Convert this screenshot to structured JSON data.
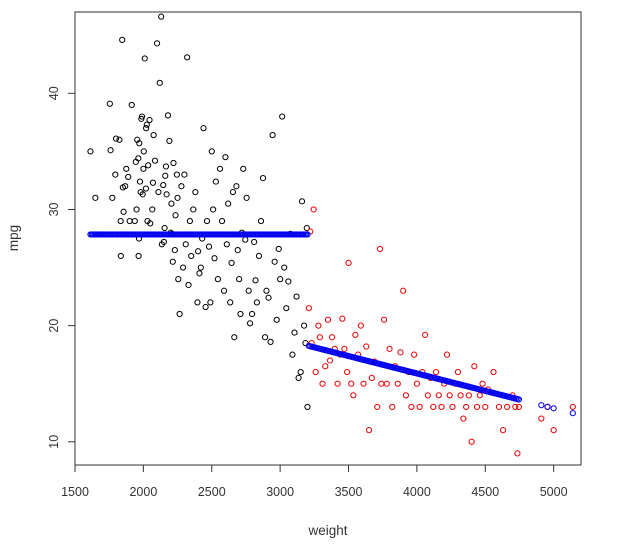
{
  "chart_data": {
    "type": "scatter",
    "xlabel": "weight",
    "ylabel": "mpg",
    "xlim": [
      1500,
      5200
    ],
    "ylim": [
      8,
      47
    ],
    "xticks": [
      1500,
      2000,
      2500,
      3000,
      3500,
      4000,
      4500,
      5000
    ],
    "yticks": [
      10,
      20,
      30,
      40
    ],
    "grid": false,
    "legend": "none",
    "colors": {
      "light": "#000000",
      "heavy": "#ee0000",
      "fit": "#0000ee"
    },
    "series": [
      {
        "key": "light",
        "points": [
          [
            1613,
            35
          ],
          [
            1649,
            31
          ],
          [
            1755,
            39.1
          ],
          [
            1760,
            35.1
          ],
          [
            1773,
            31
          ],
          [
            1795,
            33
          ],
          [
            1800,
            36.1
          ],
          [
            1825,
            36
          ],
          [
            1834,
            29
          ],
          [
            1835,
            26
          ],
          [
            1845,
            44.6
          ],
          [
            1850,
            31.9
          ],
          [
            1855,
            29.8
          ],
          [
            1867,
            32
          ],
          [
            1875,
            33.5
          ],
          [
            1889,
            32.8
          ],
          [
            1900,
            29
          ],
          [
            1915,
            39
          ],
          [
            1937,
            29
          ],
          [
            1945,
            34.1
          ],
          [
            1950,
            30
          ],
          [
            1955,
            36
          ],
          [
            1963,
            34.4
          ],
          [
            1965,
            26
          ],
          [
            1968,
            27.5
          ],
          [
            1970,
            35.7
          ],
          [
            1975,
            32.4
          ],
          [
            1980,
            31.5
          ],
          [
            1985,
            37.8
          ],
          [
            1990,
            38
          ],
          [
            1995,
            31.3
          ],
          [
            2000,
            33.5
          ],
          [
            2003,
            35
          ],
          [
            2010,
            43
          ],
          [
            2019,
            31.8
          ],
          [
            2020,
            37
          ],
          [
            2025,
            37.3
          ],
          [
            2030,
            29
          ],
          [
            2035,
            33.8
          ],
          [
            2045,
            37.7
          ],
          [
            2050,
            28.8
          ],
          [
            2065,
            30
          ],
          [
            2070,
            32.3
          ],
          [
            2075,
            36.4
          ],
          [
            2085,
            34.2
          ],
          [
            2100,
            44.3
          ],
          [
            2110,
            31.5
          ],
          [
            2120,
            40.9
          ],
          [
            2130,
            46.6
          ],
          [
            2135,
            27
          ],
          [
            2145,
            32.1
          ],
          [
            2150,
            27.2
          ],
          [
            2155,
            28.4
          ],
          [
            2160,
            32.9
          ],
          [
            2165,
            33.7
          ],
          [
            2170,
            31.3
          ],
          [
            2180,
            38.1
          ],
          [
            2190,
            35.9
          ],
          [
            2200,
            28
          ],
          [
            2205,
            30.5
          ],
          [
            2210,
            27.9
          ],
          [
            2215,
            25.5
          ],
          [
            2220,
            34
          ],
          [
            2230,
            26.5
          ],
          [
            2235,
            29.5
          ],
          [
            2245,
            33
          ],
          [
            2250,
            31
          ],
          [
            2255,
            24
          ],
          [
            2265,
            21
          ],
          [
            2278,
            32
          ],
          [
            2290,
            25
          ],
          [
            2300,
            33
          ],
          [
            2310,
            27
          ],
          [
            2320,
            43.1
          ],
          [
            2330,
            23.5
          ],
          [
            2340,
            29
          ],
          [
            2350,
            26
          ],
          [
            2365,
            30
          ],
          [
            2380,
            31.5
          ],
          [
            2395,
            22
          ],
          [
            2400,
            26.4
          ],
          [
            2410,
            24.5
          ],
          [
            2420,
            25
          ],
          [
            2430,
            27.5
          ],
          [
            2440,
            37
          ],
          [
            2455,
            21.6
          ],
          [
            2465,
            29
          ],
          [
            2480,
            26.8
          ],
          [
            2490,
            22
          ],
          [
            2500,
            35
          ],
          [
            2510,
            30
          ],
          [
            2520,
            25.8
          ],
          [
            2530,
            32.4
          ],
          [
            2545,
            24
          ],
          [
            2560,
            33.5
          ],
          [
            2575,
            29
          ],
          [
            2590,
            23
          ],
          [
            2600,
            34.5
          ],
          [
            2610,
            27
          ],
          [
            2620,
            30.5
          ],
          [
            2635,
            22
          ],
          [
            2645,
            25.4
          ],
          [
            2655,
            31.5
          ],
          [
            2665,
            19
          ],
          [
            2680,
            32
          ],
          [
            2690,
            26.5
          ],
          [
            2700,
            24
          ],
          [
            2710,
            21
          ],
          [
            2720,
            28
          ],
          [
            2730,
            33.5
          ],
          [
            2745,
            27.4
          ],
          [
            2755,
            31
          ],
          [
            2770,
            23
          ],
          [
            2780,
            20.2
          ],
          [
            2795,
            21
          ],
          [
            2810,
            27.2
          ],
          [
            2820,
            23.9
          ],
          [
            2830,
            22
          ],
          [
            2845,
            26
          ],
          [
            2860,
            29
          ],
          [
            2875,
            32.7
          ],
          [
            2890,
            19
          ],
          [
            2900,
            23
          ],
          [
            2915,
            22.4
          ],
          [
            2930,
            18.6
          ],
          [
            2945,
            36.4
          ],
          [
            2960,
            25.5
          ],
          [
            2975,
            20.5
          ],
          [
            2990,
            26.6
          ],
          [
            3000,
            24
          ],
          [
            3015,
            38
          ],
          [
            3030,
            25
          ],
          [
            3045,
            21.5
          ],
          [
            3060,
            23.8
          ],
          [
            3075,
            27.9
          ],
          [
            3090,
            17.5
          ],
          [
            3105,
            19.4
          ],
          [
            3120,
            22.5
          ],
          [
            3135,
            15.5
          ],
          [
            3150,
            16
          ],
          [
            3160,
            30.7
          ],
          [
            3175,
            20
          ],
          [
            3185,
            18.5
          ],
          [
            3195,
            28.4
          ],
          [
            3200,
            13
          ]
        ]
      },
      {
        "key": "heavy",
        "points": [
          [
            3210,
            21.5
          ],
          [
            3220,
            28.1
          ],
          [
            3230,
            18.5
          ],
          [
            3245,
            30
          ],
          [
            3260,
            16
          ],
          [
            3280,
            20
          ],
          [
            3290,
            19
          ],
          [
            3310,
            15
          ],
          [
            3330,
            16.5
          ],
          [
            3350,
            20.5
          ],
          [
            3365,
            17
          ],
          [
            3380,
            19
          ],
          [
            3400,
            18
          ],
          [
            3420,
            15
          ],
          [
            3440,
            17.5
          ],
          [
            3455,
            20.6
          ],
          [
            3470,
            18
          ],
          [
            3490,
            16
          ],
          [
            3500,
            25.4
          ],
          [
            3520,
            15
          ],
          [
            3535,
            14
          ],
          [
            3550,
            19.2
          ],
          [
            3570,
            17.5
          ],
          [
            3590,
            20
          ],
          [
            3610,
            15
          ],
          [
            3630,
            18.2
          ],
          [
            3650,
            11
          ],
          [
            3670,
            15.5
          ],
          [
            3690,
            16.9
          ],
          [
            3710,
            13
          ],
          [
            3730,
            26.6
          ],
          [
            3740,
            15
          ],
          [
            3760,
            20.5
          ],
          [
            3780,
            15
          ],
          [
            3800,
            18
          ],
          [
            3820,
            13
          ],
          [
            3840,
            16.5
          ],
          [
            3860,
            15
          ],
          [
            3880,
            17.7
          ],
          [
            3900,
            23
          ],
          [
            3920,
            14
          ],
          [
            3940,
            16
          ],
          [
            3960,
            13
          ],
          [
            3980,
            17.5
          ],
          [
            4000,
            15
          ],
          [
            4020,
            13
          ],
          [
            4040,
            16
          ],
          [
            4060,
            19.2
          ],
          [
            4080,
            14
          ],
          [
            4100,
            15.5
          ],
          [
            4120,
            13
          ],
          [
            4140,
            16
          ],
          [
            4160,
            14
          ],
          [
            4180,
            13
          ],
          [
            4200,
            15
          ],
          [
            4220,
            17.5
          ],
          [
            4240,
            14
          ],
          [
            4260,
            13
          ],
          [
            4280,
            15
          ],
          [
            4300,
            16
          ],
          [
            4320,
            14
          ],
          [
            4340,
            12
          ],
          [
            4360,
            13
          ],
          [
            4380,
            14
          ],
          [
            4400,
            10
          ],
          [
            4420,
            16.5
          ],
          [
            4440,
            13
          ],
          [
            4460,
            14
          ],
          [
            4480,
            15
          ],
          [
            4500,
            13
          ],
          [
            4520,
            14.5
          ],
          [
            4560,
            16
          ],
          [
            4600,
            13
          ],
          [
            4630,
            11
          ],
          [
            4660,
            13
          ],
          [
            4700,
            14
          ],
          [
            4720,
            13
          ],
          [
            4735,
            9
          ],
          [
            4746,
            13
          ],
          [
            4910,
            12
          ],
          [
            4955,
            13
          ],
          [
            5000,
            11
          ],
          [
            5140,
            13
          ]
        ]
      },
      {
        "key": "fit",
        "name": "",
        "segments": [
          {
            "x_from": 1613,
            "x_to": 3200,
            "slope": 0,
            "intercept": 27.85,
            "count": 160,
            "extra_x": [
              1625,
              1650,
              1660
            ]
          },
          {
            "x_from": 3210,
            "x_to": 4746,
            "slope": -0.003,
            "intercept": 27.88,
            "count": 150,
            "extra_x": [
              4910,
              4955,
              5000,
              5140
            ]
          }
        ]
      }
    ]
  }
}
